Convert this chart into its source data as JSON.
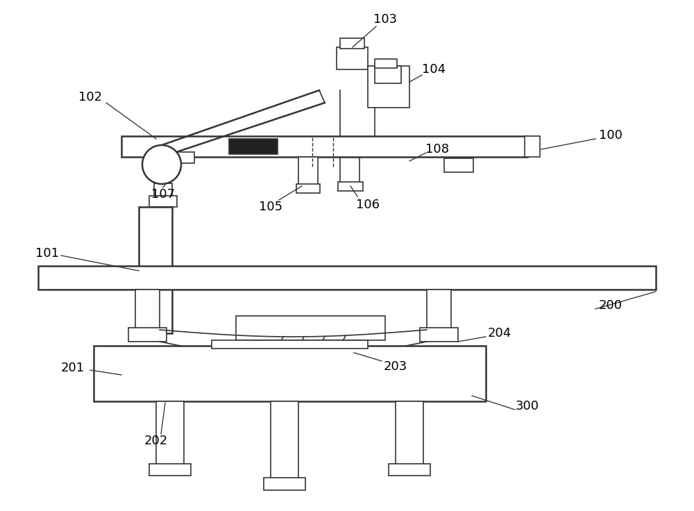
{
  "background_color": "#ffffff",
  "line_color": "#333333",
  "dark_fill": "#222222",
  "figsize": [
    10.0,
    7.36
  ],
  "dpi": 100
}
